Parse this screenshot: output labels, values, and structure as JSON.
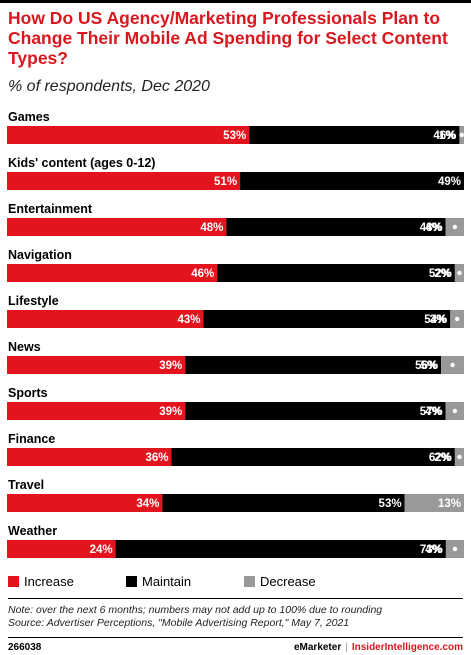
{
  "header": {
    "title": "How Do US Agency/Marketing Professionals Plan to Change Their Mobile Ad Spending for Select Content Types?",
    "subtitle": "% of respondents, Dec 2020"
  },
  "legend": {
    "increase": "Increase",
    "maintain": "Maintain",
    "decrease": "Decrease"
  },
  "colors": {
    "increase": "#e3141e",
    "maintain": "#000000",
    "decrease": "#999999",
    "title": "#d9171f"
  },
  "chart_data": {
    "type": "bar",
    "orientation": "horizontal-stacked-100",
    "categories": [
      "Games",
      "Kids' content (ages 0-12)",
      "Entertainment",
      "Navigation",
      "Lifestyle",
      "News",
      "Sports",
      "Finance",
      "Travel",
      "Weather"
    ],
    "series": [
      {
        "name": "Increase",
        "values": [
          53,
          51,
          48,
          46,
          43,
          39,
          39,
          36,
          34,
          24
        ]
      },
      {
        "name": "Maintain",
        "values": [
          46,
          49,
          48,
          52,
          54,
          56,
          57,
          62,
          53,
          73
        ]
      },
      {
        "name": "Decrease",
        "values": [
          1,
          0,
          4,
          2,
          3,
          5,
          4,
          2,
          13,
          4
        ]
      }
    ],
    "data_labels": {
      "increase": [
        "53%",
        "51%",
        "48%",
        "46%",
        "43%",
        "39%",
        "39%",
        "36%",
        "34%",
        "24%"
      ],
      "maintain": [
        "46%",
        "49%",
        "48%",
        "52%",
        "54%",
        "56%",
        "57%",
        "62%",
        "53%",
        "73%"
      ],
      "decrease": [
        "1%",
        "",
        "4%",
        "2%",
        "3%",
        "5%",
        "4%",
        "2%",
        "13%",
        "4%"
      ]
    },
    "legend_position": "bottom",
    "grid": false
  },
  "footer": {
    "note": "Note: over the next 6 months; numbers may not add up to 100% due to rounding",
    "source": "Source: Advertiser Perceptions, \"Mobile Advertising Report,\" May 7, 2021",
    "id": "266038",
    "brand_emarketer": "eMarketer",
    "brand_separator": "|",
    "brand_insider": "InsiderIntelligence.com"
  }
}
